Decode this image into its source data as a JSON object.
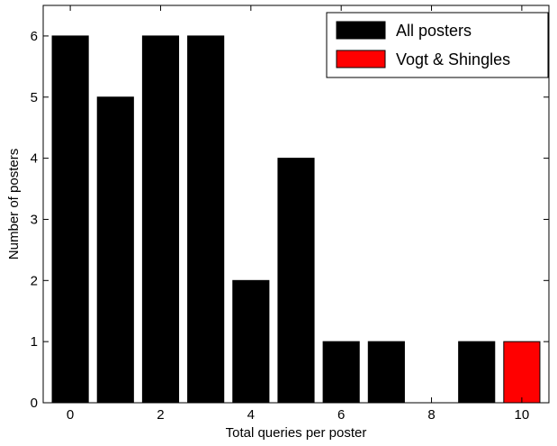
{
  "chart_data": {
    "type": "bar",
    "title": "",
    "xlabel": "Total queries per poster",
    "ylabel": "Number of posters",
    "xlim": [
      -0.6,
      10.6
    ],
    "ylim": [
      0,
      6.5
    ],
    "xticks": [
      0,
      2,
      4,
      6,
      8,
      10
    ],
    "yticks": [
      0,
      1,
      2,
      3,
      4,
      5,
      6
    ],
    "grid": false,
    "legend_position": "top-right",
    "series": [
      {
        "name": "All posters",
        "color": "#000000",
        "x": [
          0,
          1,
          2,
          3,
          4,
          5,
          6,
          7,
          8,
          9
        ],
        "values": [
          6,
          5,
          6,
          6,
          2,
          4,
          1,
          1,
          0,
          1
        ]
      },
      {
        "name": "Vogt & Shingles",
        "color": "#ff0000",
        "x": [
          10
        ],
        "values": [
          1
        ]
      }
    ]
  }
}
